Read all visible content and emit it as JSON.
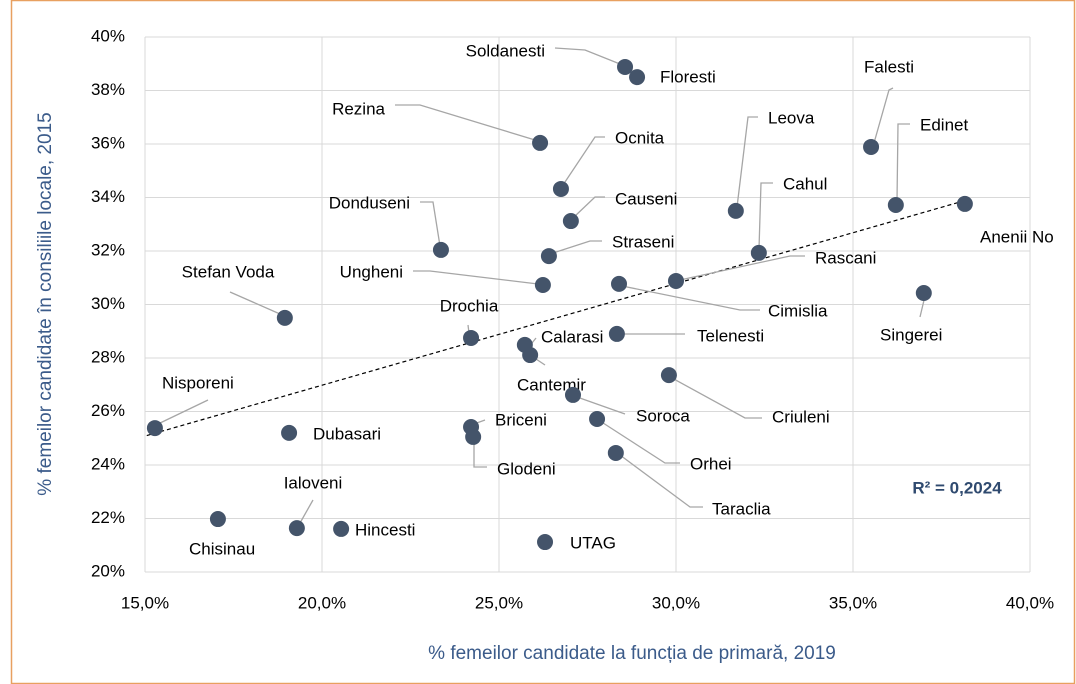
{
  "chart_data": {
    "type": "scatter",
    "x_label": "% femeilor candidate la funcția de primară, 2019",
    "y_label": "% femeilor candidate în consiliile locale, 2015",
    "labels": [
      "Soldanesti",
      "Floresti",
      "Rezina",
      "Ocnita",
      "Causeni",
      "Straseni",
      "Ungheni",
      "Donduseni",
      "Stefan Voda",
      "Drochia",
      "Calarasi",
      "Cantemir",
      "Telenesti",
      "Cimislia",
      "Rascani",
      "Cahul",
      "Leova",
      "Falesti",
      "Edinet",
      "Anenii No",
      "Singerei",
      "Criuleni",
      "Soroca",
      "Orhei",
      "Taraclia",
      "Briceni",
      "Glodeni",
      "Nisporeni",
      "Dubasari",
      "Chisinau",
      "Ialoveni",
      "Hincesti",
      "UTAG"
    ],
    "x": [
      28.56,
      28.9,
      26.16,
      26.75,
      27.03,
      26.41,
      26.24,
      23.36,
      18.95,
      24.21,
      25.73,
      25.88,
      28.33,
      28.39,
      30.0,
      32.34,
      31.69,
      35.51,
      36.21,
      38.16,
      37.0,
      29.8,
      27.09,
      27.77,
      28.3,
      24.21,
      24.27,
      15.28,
      19.07,
      17.06,
      19.29,
      20.54,
      26.3
    ],
    "values": [
      38.88,
      38.5,
      36.04,
      34.32,
      33.12,
      31.81,
      30.73,
      32.04,
      29.5,
      28.75,
      28.49,
      28.11,
      28.9,
      30.77,
      30.88,
      31.93,
      33.5,
      35.89,
      33.72,
      33.76,
      30.43,
      27.36,
      26.62,
      25.72,
      24.45,
      25.42,
      25.05,
      25.38,
      25.2,
      21.98,
      21.64,
      21.61,
      21.12
    ],
    "color": "#44546a",
    "trendline": {
      "x": [
        15.05,
        38.2
      ],
      "values": [
        25.1,
        33.9
      ]
    },
    "annotation": "R² = 0,2024",
    "xlim": [
      15,
      40
    ],
    "xticks": [
      {
        "value": 15,
        "label": "15,0%"
      },
      {
        "value": 20,
        "label": "20,0%"
      },
      {
        "value": 25,
        "label": "25,0%"
      },
      {
        "value": 30,
        "label": "30,0%"
      },
      {
        "value": 35,
        "label": "35,0%"
      },
      {
        "value": 40,
        "label": "40,0%"
      }
    ],
    "ylim": [
      20,
      40
    ],
    "yticks": [
      {
        "value": 20,
        "label": "20%"
      },
      {
        "value": 22,
        "label": "22%"
      },
      {
        "value": 24,
        "label": "24%"
      },
      {
        "value": 26,
        "label": "26%"
      },
      {
        "value": 28,
        "label": "28%"
      },
      {
        "value": 30,
        "label": "30%"
      },
      {
        "value": 32,
        "label": "32%"
      },
      {
        "value": 34,
        "label": "34%"
      },
      {
        "value": 36,
        "label": "36%"
      },
      {
        "value": 38,
        "label": "38%"
      },
      {
        "value": 40,
        "label": "40%"
      }
    ],
    "grid": true
  }
}
